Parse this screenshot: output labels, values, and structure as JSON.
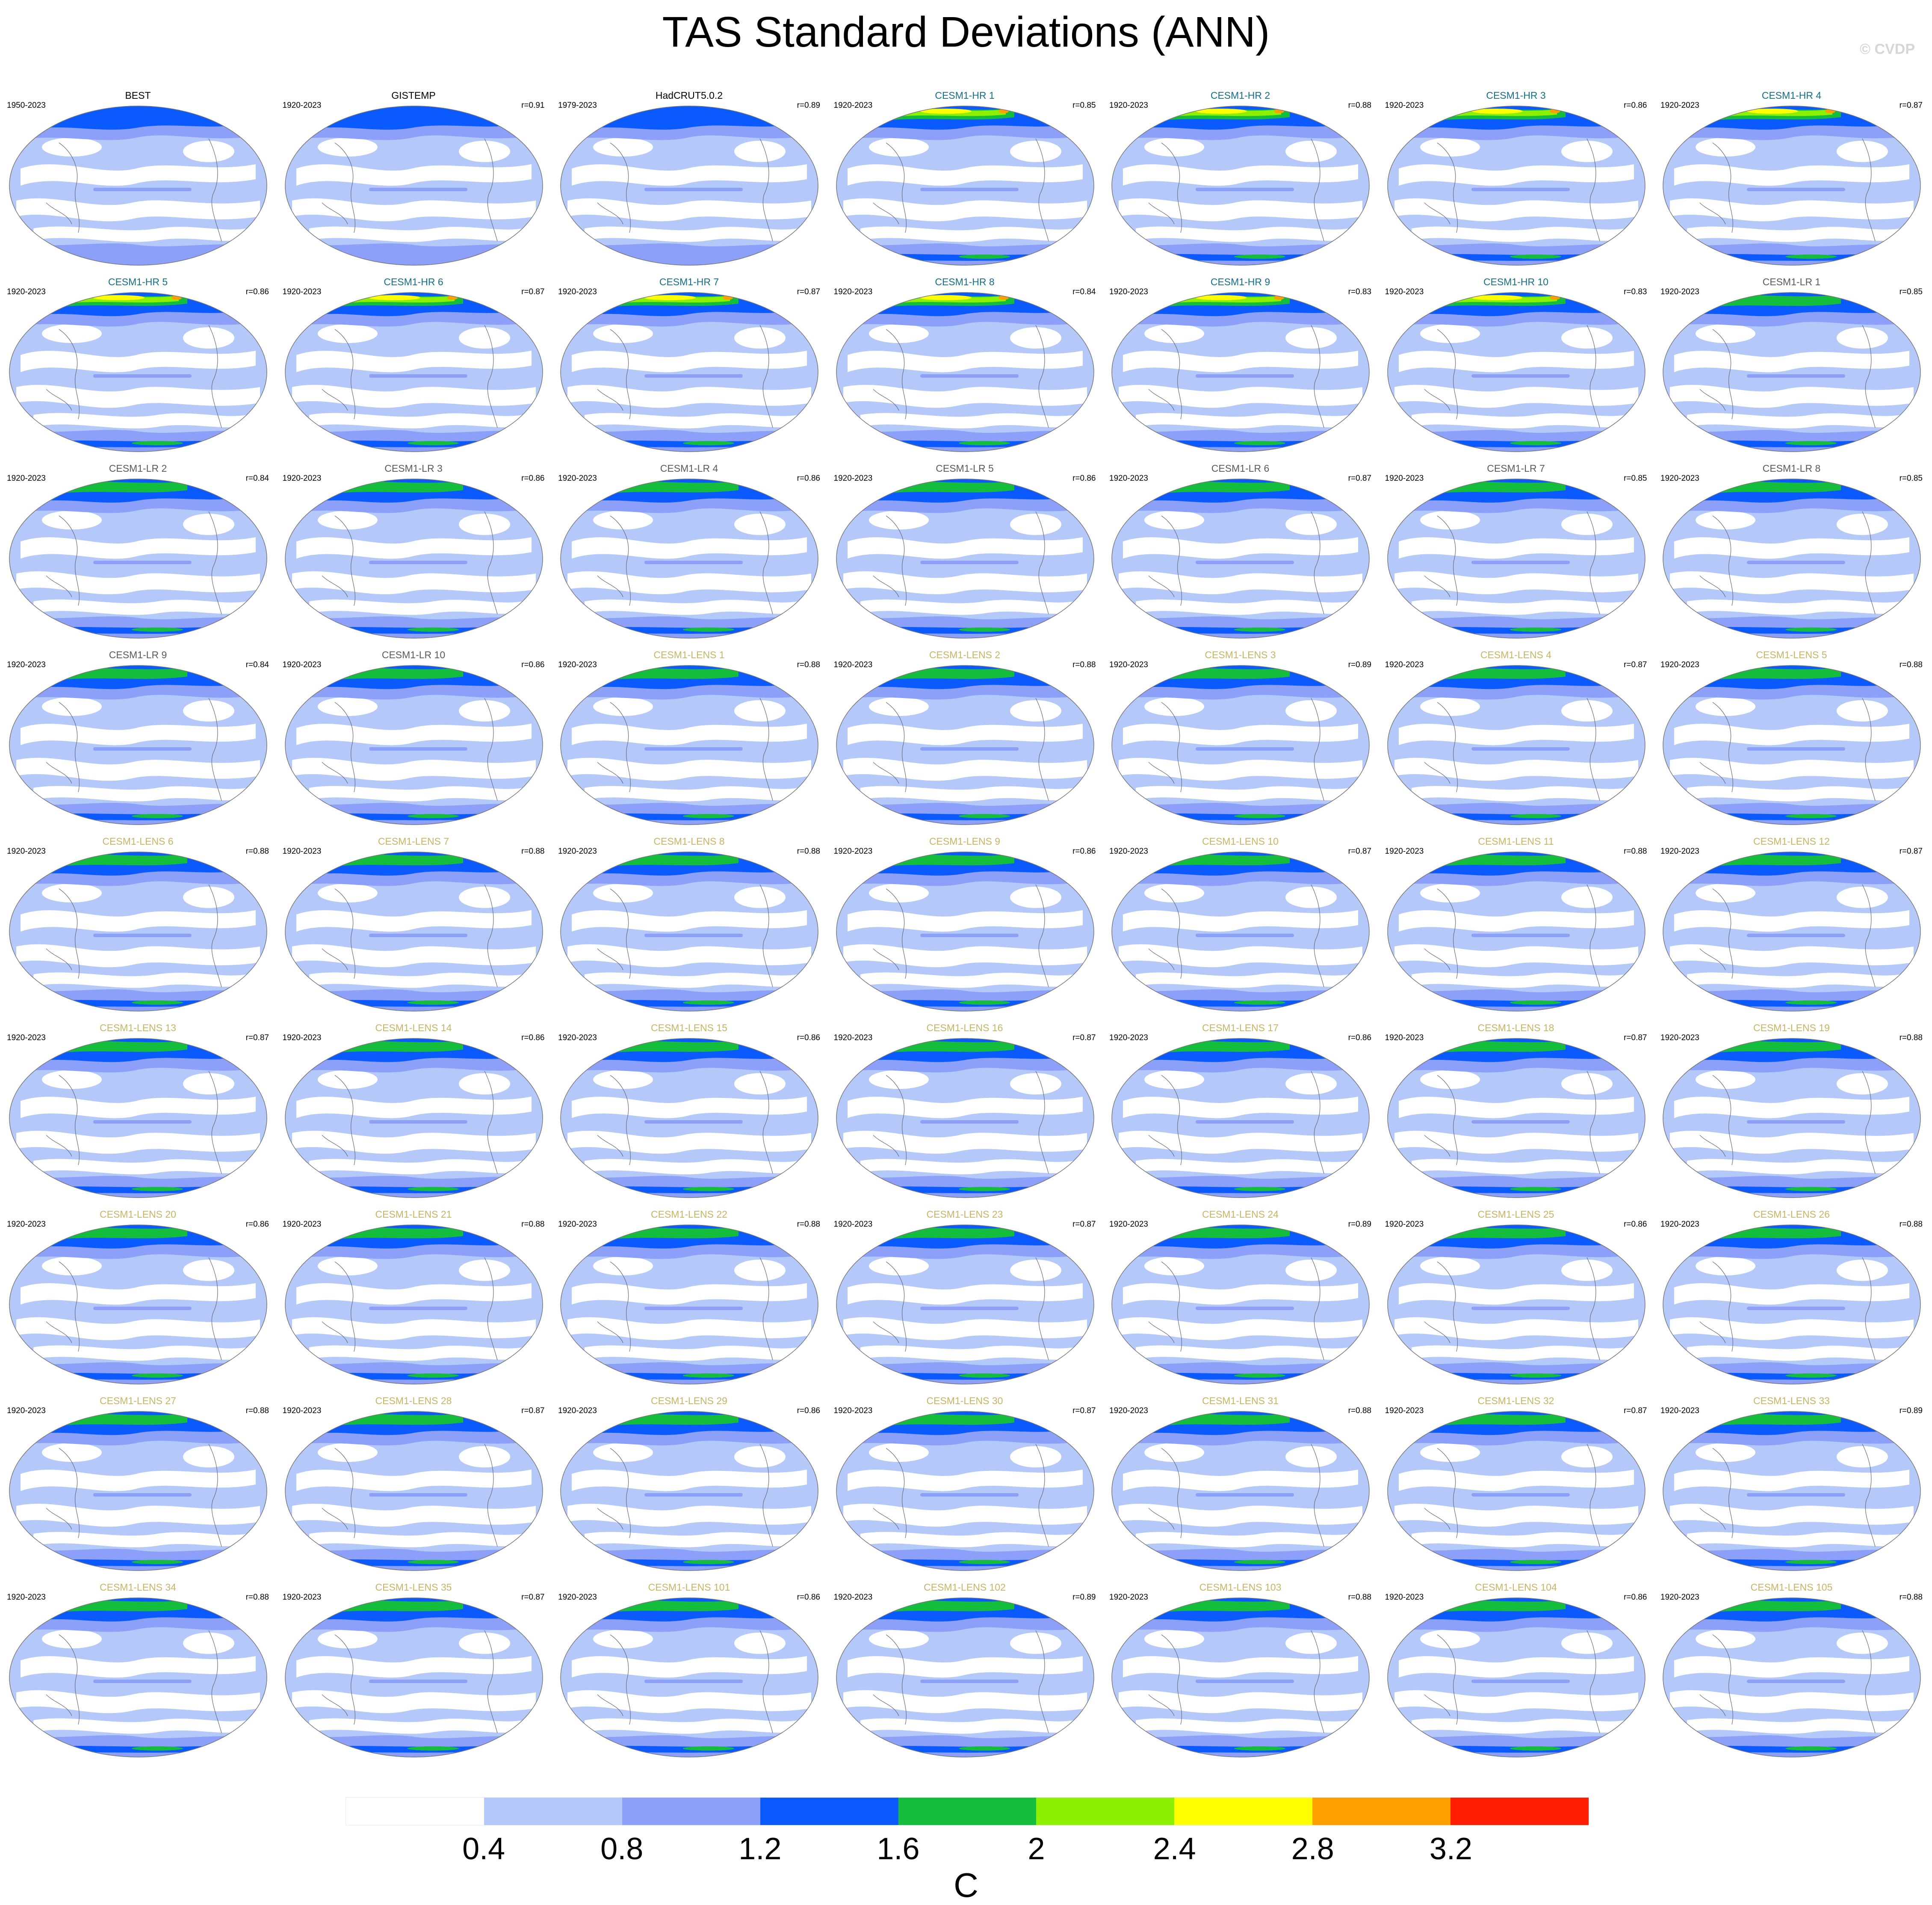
{
  "title": "TAS Standard Deviations (ANN)",
  "credit": "© CVDP",
  "colorbar": {
    "unit": "C",
    "ticks": [
      "0.4",
      "0.8",
      "1.2",
      "1.6",
      "2",
      "2.4",
      "2.8",
      "3.2"
    ],
    "colors": [
      "#ffffff",
      "#b4c8fa",
      "#8ca0fa",
      "#0a5aff",
      "#14be3c",
      "#8cf000",
      "#ffff00",
      "#ffa000",
      "#ff1e00"
    ]
  },
  "name_colors": {
    "obs": "#000000",
    "hr": "#146e8c",
    "lr": "#5a5a5a",
    "lens": "#c8b464"
  },
  "panels": [
    {
      "name": "BEST",
      "period": "1950-2023",
      "r": "",
      "group": "obs"
    },
    {
      "name": "GISTEMP",
      "period": "1920-2023",
      "r": "r=0.91",
      "group": "obs"
    },
    {
      "name": "HadCRUT5.0.2",
      "period": "1979-2023",
      "r": "r=0.89",
      "group": "obs"
    },
    {
      "name": "CESM1-HR 1",
      "period": "1920-2023",
      "r": "r=0.85",
      "group": "hr"
    },
    {
      "name": "CESM1-HR 2",
      "period": "1920-2023",
      "r": "r=0.88",
      "group": "hr"
    },
    {
      "name": "CESM1-HR 3",
      "period": "1920-2023",
      "r": "r=0.86",
      "group": "hr"
    },
    {
      "name": "CESM1-HR 4",
      "period": "1920-2023",
      "r": "r=0.87",
      "group": "hr"
    },
    {
      "name": "CESM1-HR 5",
      "period": "1920-2023",
      "r": "r=0.86",
      "group": "hr"
    },
    {
      "name": "CESM1-HR 6",
      "period": "1920-2023",
      "r": "r=0.87",
      "group": "hr"
    },
    {
      "name": "CESM1-HR 7",
      "period": "1920-2023",
      "r": "r=0.87",
      "group": "hr"
    },
    {
      "name": "CESM1-HR 8",
      "period": "1920-2023",
      "r": "r=0.84",
      "group": "hr"
    },
    {
      "name": "CESM1-HR 9",
      "period": "1920-2023",
      "r": "r=0.83",
      "group": "hr"
    },
    {
      "name": "CESM1-HR 10",
      "period": "1920-2023",
      "r": "r=0.83",
      "group": "hr"
    },
    {
      "name": "CESM1-LR 1",
      "period": "1920-2023",
      "r": "r=0.85",
      "group": "lr"
    },
    {
      "name": "CESM1-LR 2",
      "period": "1920-2023",
      "r": "r=0.84",
      "group": "lr"
    },
    {
      "name": "CESM1-LR 3",
      "period": "1920-2023",
      "r": "r=0.86",
      "group": "lr"
    },
    {
      "name": "CESM1-LR 4",
      "period": "1920-2023",
      "r": "r=0.86",
      "group": "lr"
    },
    {
      "name": "CESM1-LR 5",
      "period": "1920-2023",
      "r": "r=0.86",
      "group": "lr"
    },
    {
      "name": "CESM1-LR 6",
      "period": "1920-2023",
      "r": "r=0.87",
      "group": "lr"
    },
    {
      "name": "CESM1-LR 7",
      "period": "1920-2023",
      "r": "r=0.85",
      "group": "lr"
    },
    {
      "name": "CESM1-LR 8",
      "period": "1920-2023",
      "r": "r=0.85",
      "group": "lr"
    },
    {
      "name": "CESM1-LR 9",
      "period": "1920-2023",
      "r": "r=0.84",
      "group": "lr"
    },
    {
      "name": "CESM1-LR 10",
      "period": "1920-2023",
      "r": "r=0.86",
      "group": "lr"
    },
    {
      "name": "CESM1-LENS 1",
      "period": "1920-2023",
      "r": "r=0.88",
      "group": "lens"
    },
    {
      "name": "CESM1-LENS 2",
      "period": "1920-2023",
      "r": "r=0.88",
      "group": "lens"
    },
    {
      "name": "CESM1-LENS 3",
      "period": "1920-2023",
      "r": "r=0.89",
      "group": "lens"
    },
    {
      "name": "CESM1-LENS 4",
      "period": "1920-2023",
      "r": "r=0.87",
      "group": "lens"
    },
    {
      "name": "CESM1-LENS 5",
      "period": "1920-2023",
      "r": "r=0.88",
      "group": "lens"
    },
    {
      "name": "CESM1-LENS 6",
      "period": "1920-2023",
      "r": "r=0.88",
      "group": "lens"
    },
    {
      "name": "CESM1-LENS 7",
      "period": "1920-2023",
      "r": "r=0.88",
      "group": "lens"
    },
    {
      "name": "CESM1-LENS 8",
      "period": "1920-2023",
      "r": "r=0.88",
      "group": "lens"
    },
    {
      "name": "CESM1-LENS 9",
      "period": "1920-2023",
      "r": "r=0.86",
      "group": "lens"
    },
    {
      "name": "CESM1-LENS 10",
      "period": "1920-2023",
      "r": "r=0.87",
      "group": "lens"
    },
    {
      "name": "CESM1-LENS 11",
      "period": "1920-2023",
      "r": "r=0.88",
      "group": "lens"
    },
    {
      "name": "CESM1-LENS 12",
      "period": "1920-2023",
      "r": "r=0.87",
      "group": "lens"
    },
    {
      "name": "CESM1-LENS 13",
      "period": "1920-2023",
      "r": "r=0.87",
      "group": "lens"
    },
    {
      "name": "CESM1-LENS 14",
      "period": "1920-2023",
      "r": "r=0.86",
      "group": "lens"
    },
    {
      "name": "CESM1-LENS 15",
      "period": "1920-2023",
      "r": "r=0.86",
      "group": "lens"
    },
    {
      "name": "CESM1-LENS 16",
      "period": "1920-2023",
      "r": "r=0.87",
      "group": "lens"
    },
    {
      "name": "CESM1-LENS 17",
      "period": "1920-2023",
      "r": "r=0.86",
      "group": "lens"
    },
    {
      "name": "CESM1-LENS 18",
      "period": "1920-2023",
      "r": "r=0.87",
      "group": "lens"
    },
    {
      "name": "CESM1-LENS 19",
      "period": "1920-2023",
      "r": "r=0.88",
      "group": "lens"
    },
    {
      "name": "CESM1-LENS 20",
      "period": "1920-2023",
      "r": "r=0.86",
      "group": "lens"
    },
    {
      "name": "CESM1-LENS 21",
      "period": "1920-2023",
      "r": "r=0.88",
      "group": "lens"
    },
    {
      "name": "CESM1-LENS 22",
      "period": "1920-2023",
      "r": "r=0.88",
      "group": "lens"
    },
    {
      "name": "CESM1-LENS 23",
      "period": "1920-2023",
      "r": "r=0.87",
      "group": "lens"
    },
    {
      "name": "CESM1-LENS 24",
      "period": "1920-2023",
      "r": "r=0.89",
      "group": "lens"
    },
    {
      "name": "CESM1-LENS 25",
      "period": "1920-2023",
      "r": "r=0.86",
      "group": "lens"
    },
    {
      "name": "CESM1-LENS 26",
      "period": "1920-2023",
      "r": "r=0.88",
      "group": "lens"
    },
    {
      "name": "CESM1-LENS 27",
      "period": "1920-2023",
      "r": "r=0.88",
      "group": "lens"
    },
    {
      "name": "CESM1-LENS 28",
      "period": "1920-2023",
      "r": "r=0.87",
      "group": "lens"
    },
    {
      "name": "CESM1-LENS 29",
      "period": "1920-2023",
      "r": "r=0.86",
      "group": "lens"
    },
    {
      "name": "CESM1-LENS 30",
      "period": "1920-2023",
      "r": "r=0.87",
      "group": "lens"
    },
    {
      "name": "CESM1-LENS 31",
      "period": "1920-2023",
      "r": "r=0.88",
      "group": "lens"
    },
    {
      "name": "CESM1-LENS 32",
      "period": "1920-2023",
      "r": "r=0.87",
      "group": "lens"
    },
    {
      "name": "CESM1-LENS 33",
      "period": "1920-2023",
      "r": "r=0.89",
      "group": "lens"
    },
    {
      "name": "CESM1-LENS 34",
      "period": "1920-2023",
      "r": "r=0.88",
      "group": "lens"
    },
    {
      "name": "CESM1-LENS 35",
      "period": "1920-2023",
      "r": "r=0.87",
      "group": "lens"
    },
    {
      "name": "CESM1-LENS 101",
      "period": "1920-2023",
      "r": "r=0.86",
      "group": "lens"
    },
    {
      "name": "CESM1-LENS 102",
      "period": "1920-2023",
      "r": "r=0.89",
      "group": "lens"
    },
    {
      "name": "CESM1-LENS 103",
      "period": "1920-2023",
      "r": "r=0.88",
      "group": "lens"
    },
    {
      "name": "CESM1-LENS 104",
      "period": "1920-2023",
      "r": "r=0.86",
      "group": "lens"
    },
    {
      "name": "CESM1-LENS 105",
      "period": "1920-2023",
      "r": "r=0.88",
      "group": "lens"
    }
  ]
}
